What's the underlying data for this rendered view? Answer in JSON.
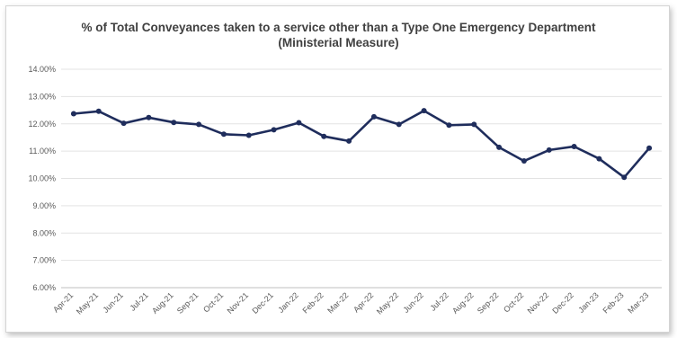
{
  "chart_data": {
    "type": "line",
    "title_line1": "% of Total Conveyances taken to a service other than a Type One Emergency Department",
    "title_line2": "(Ministerial Measure)",
    "xlabel": "",
    "ylabel": "",
    "ylim": [
      0.06,
      0.14
    ],
    "yticks": [
      "6.00%",
      "7.00%",
      "8.00%",
      "9.00%",
      "10.00%",
      "11.00%",
      "12.00%",
      "13.00%",
      "14.00%"
    ],
    "grid": true,
    "legend": "none",
    "line_color": "#1f2d5c",
    "categories": [
      "Apr-21",
      "May-21",
      "Jun-21",
      "Jul-21",
      "Aug-21",
      "Sep-21",
      "Oct-21",
      "Nov-21",
      "Dec-21",
      "Jan-22",
      "Feb-22",
      "Mar-22",
      "Apr-22",
      "May-22",
      "Jun-22",
      "Jul-22",
      "Aug-22",
      "Sep-22",
      "Oct-22",
      "Nov-22",
      "Dec-22",
      "Jan-23",
      "Feb-23",
      "Mar-23"
    ],
    "series": [
      {
        "values": [
          0.1237,
          0.1246,
          0.1202,
          0.1223,
          0.1205,
          0.1198,
          0.1162,
          0.1158,
          0.1178,
          0.1204,
          0.1154,
          0.1137,
          0.1226,
          0.1198,
          0.1248,
          0.1195,
          0.1198,
          0.1114,
          0.1064,
          0.1104,
          0.1117,
          0.1072,
          0.1004,
          0.1111
        ]
      }
    ]
  }
}
